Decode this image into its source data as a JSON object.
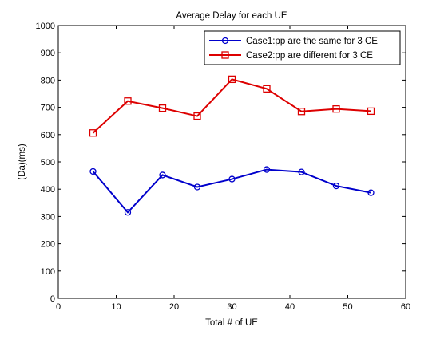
{
  "chart_data": {
    "type": "line",
    "title": "Average Delay for each UE",
    "xlabel": "Total # of UE",
    "ylabel": "(Da)(ms)",
    "xlim": [
      0,
      60
    ],
    "ylim": [
      0,
      1000
    ],
    "xticks": [
      0,
      10,
      20,
      30,
      40,
      50,
      60
    ],
    "yticks": [
      0,
      100,
      200,
      300,
      400,
      500,
      600,
      700,
      800,
      900,
      1000
    ],
    "grid": false,
    "legend_position": "top-right",
    "x": [
      6,
      12,
      18,
      24,
      30,
      36,
      42,
      48,
      54
    ],
    "series": [
      {
        "name": "Case1:pp are the same for 3 CE",
        "color": "#0000cc",
        "marker": "circle",
        "values": [
          465,
          315,
          452,
          408,
          437,
          472,
          463,
          412,
          387
        ]
      },
      {
        "name": "Case2:pp are different for 3 CE",
        "color": "#dd0000",
        "marker": "square",
        "values": [
          606,
          723,
          697,
          668,
          803,
          768,
          685,
          694,
          686
        ]
      }
    ]
  }
}
